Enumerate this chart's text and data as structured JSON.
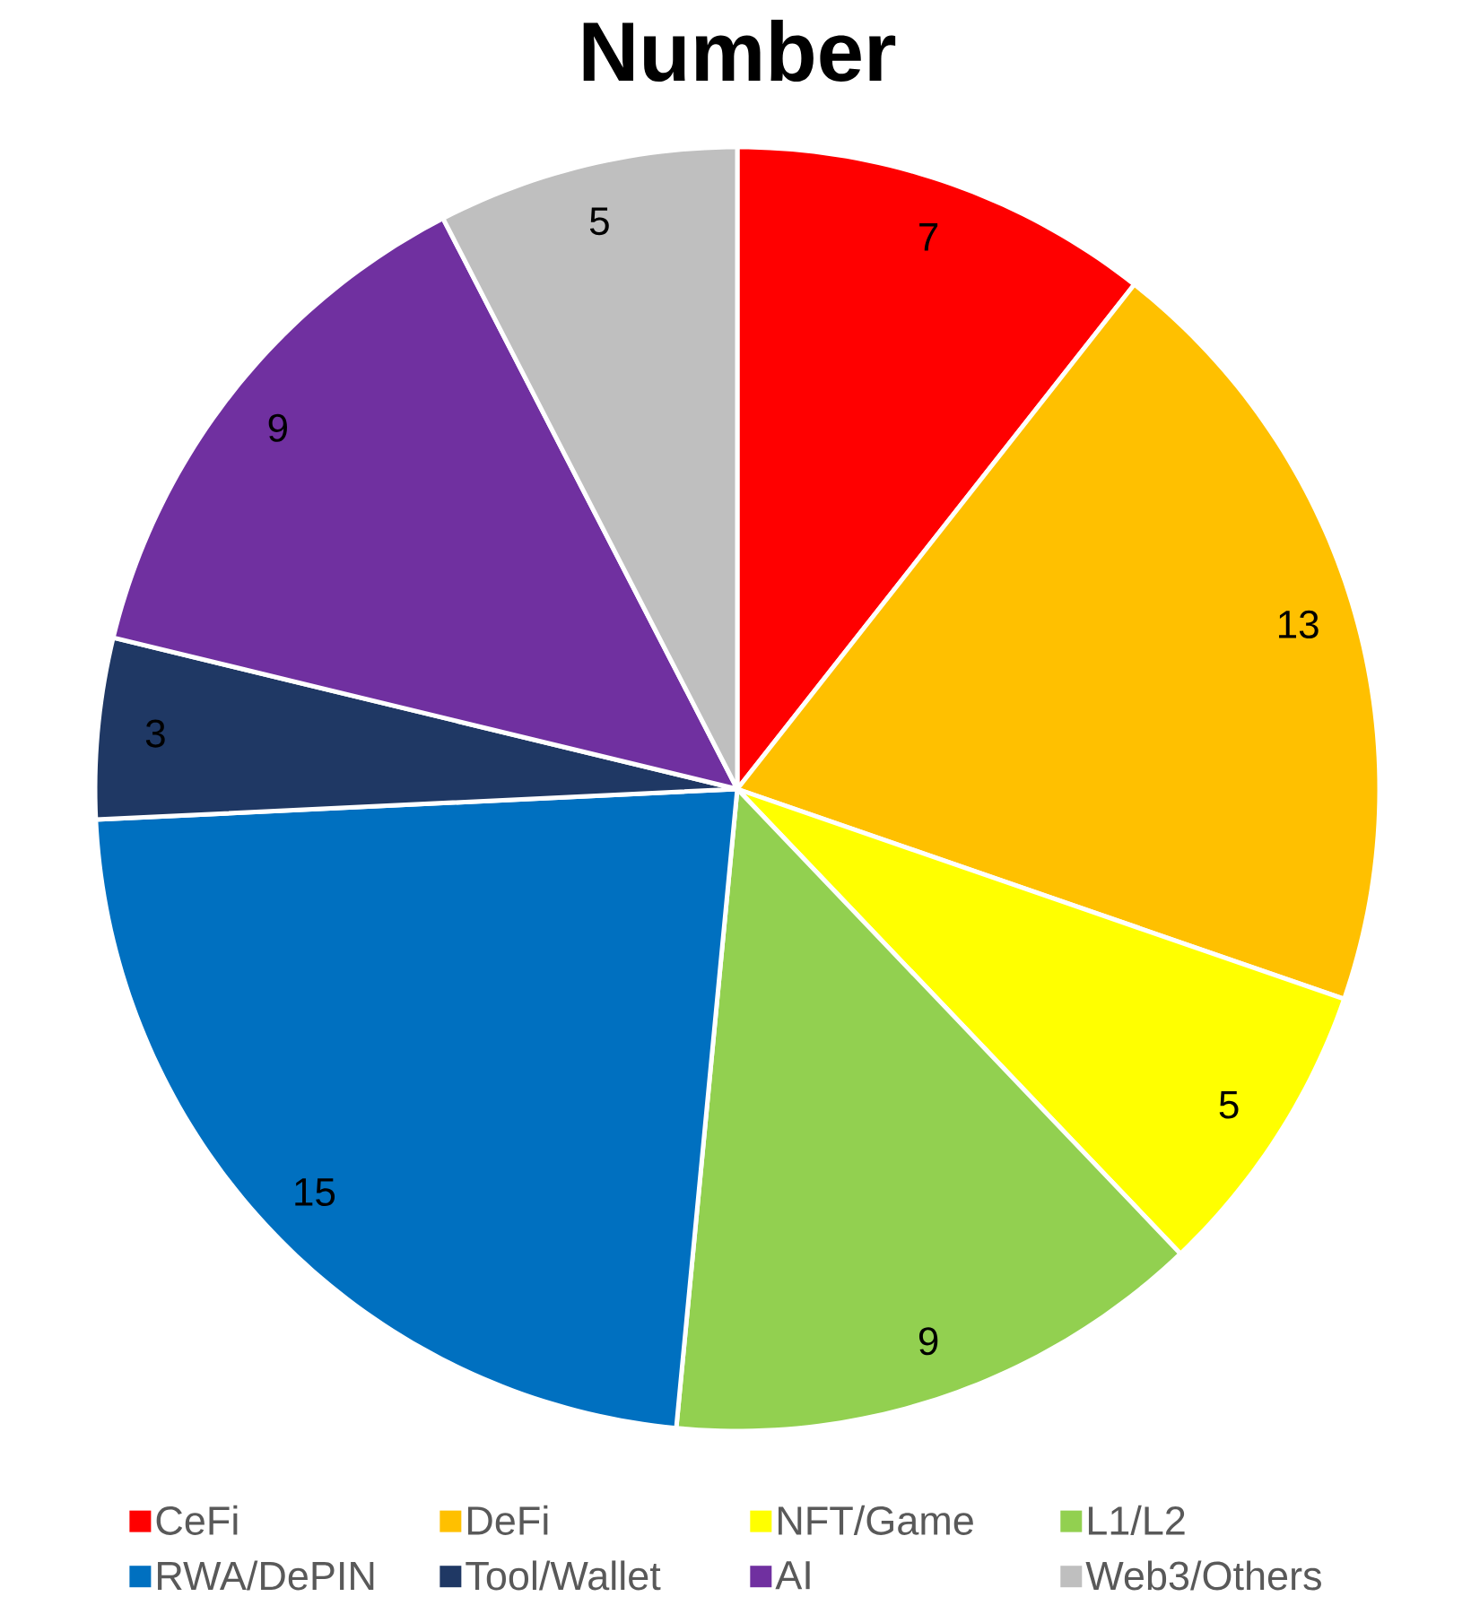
{
  "chart_data": {
    "type": "pie",
    "title": "Number",
    "categories": [
      "CeFi",
      "DeFi",
      "NFT/Game",
      "L1/L2",
      "RWA/DePIN",
      "Tool/Wallet",
      "AI",
      "Web3/Others"
    ],
    "values": [
      7,
      13,
      5,
      9,
      15,
      3,
      9,
      5
    ],
    "colors": [
      "#ff0000",
      "#ffc000",
      "#ffff00",
      "#92d050",
      "#0070c0",
      "#1f3864",
      "#7030a0",
      "#bfbfbf"
    ],
    "data_labels": true,
    "legend": "bottom"
  }
}
